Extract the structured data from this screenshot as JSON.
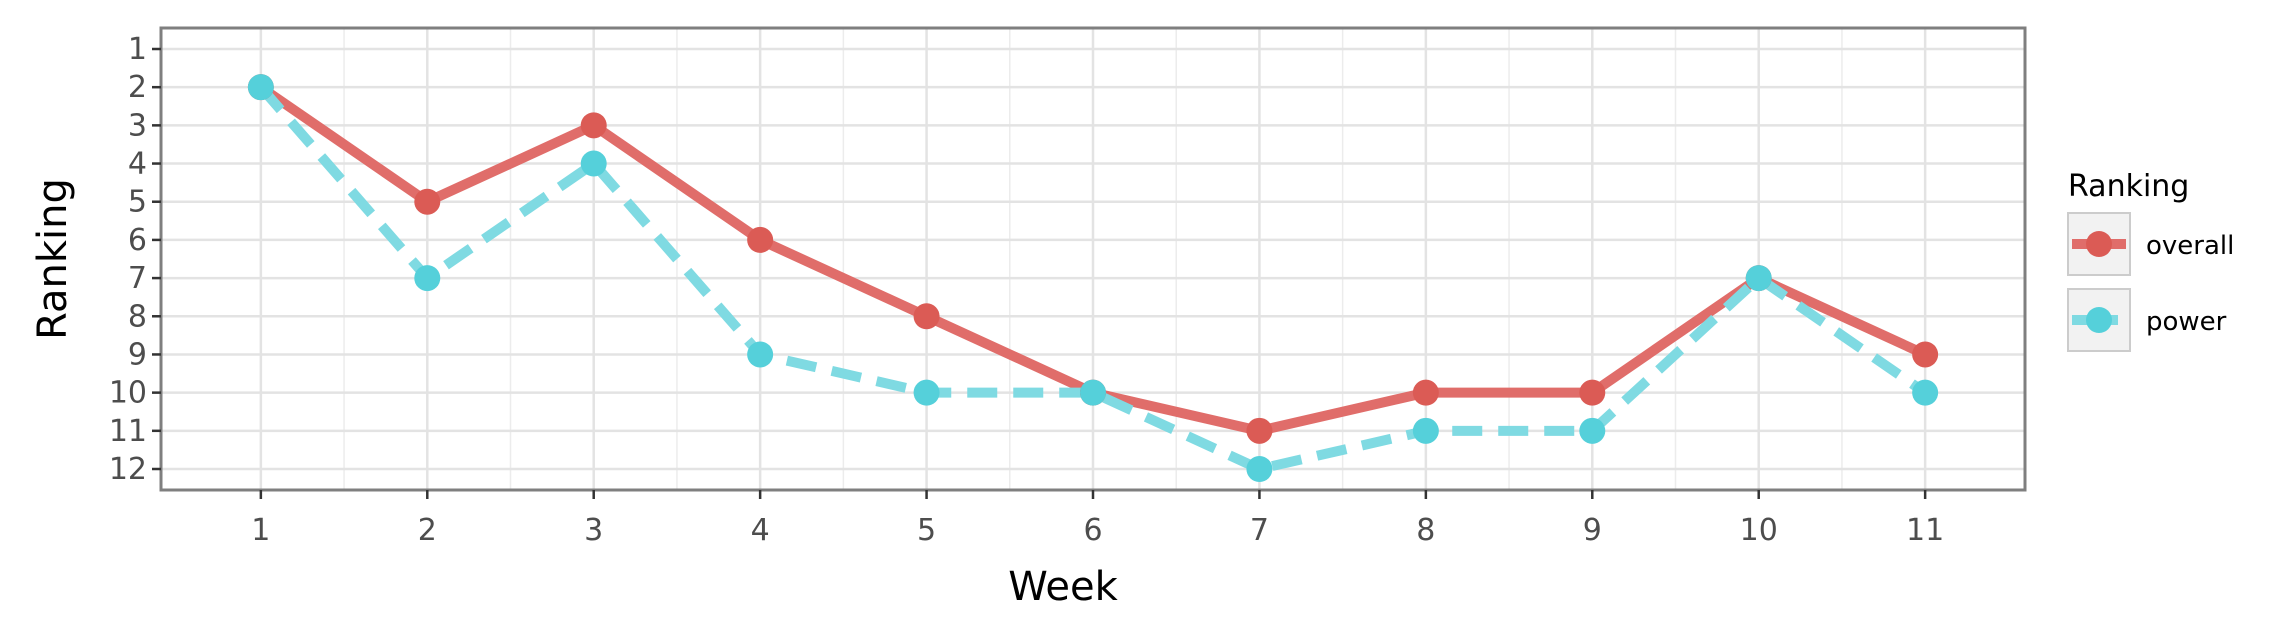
{
  "chart_data": {
    "type": "line",
    "title": "",
    "xlabel": "Week",
    "ylabel": "Ranking",
    "x": [
      1,
      2,
      3,
      4,
      5,
      6,
      7,
      8,
      9,
      10,
      11
    ],
    "xlim": [
      0.4,
      11.6
    ],
    "ylim": [
      12.55,
      0.45
    ],
    "y_reversed": true,
    "x_ticks": [
      "1",
      "2",
      "3",
      "4",
      "5",
      "6",
      "7",
      "8",
      "9",
      "10",
      "11"
    ],
    "y_ticks": [
      "1",
      "2",
      "3",
      "4",
      "5",
      "6",
      "7",
      "8",
      "9",
      "10",
      "11",
      "12"
    ],
    "grid": true,
    "legend": {
      "title": "Ranking",
      "placement": "right"
    },
    "series": [
      {
        "name": "overall",
        "values": [
          2,
          5,
          3,
          6,
          8,
          10,
          11,
          10,
          10,
          7,
          9
        ],
        "color": "#E06D6A",
        "point_color": "#DB5B55",
        "line_style": "solid"
      },
      {
        "name": "power",
        "values": [
          2,
          7,
          4,
          9,
          10,
          10,
          12,
          11,
          11,
          7,
          10
        ],
        "color": "#7FDAE2",
        "point_color": "#55D0DA",
        "line_style": "dashed"
      }
    ]
  }
}
